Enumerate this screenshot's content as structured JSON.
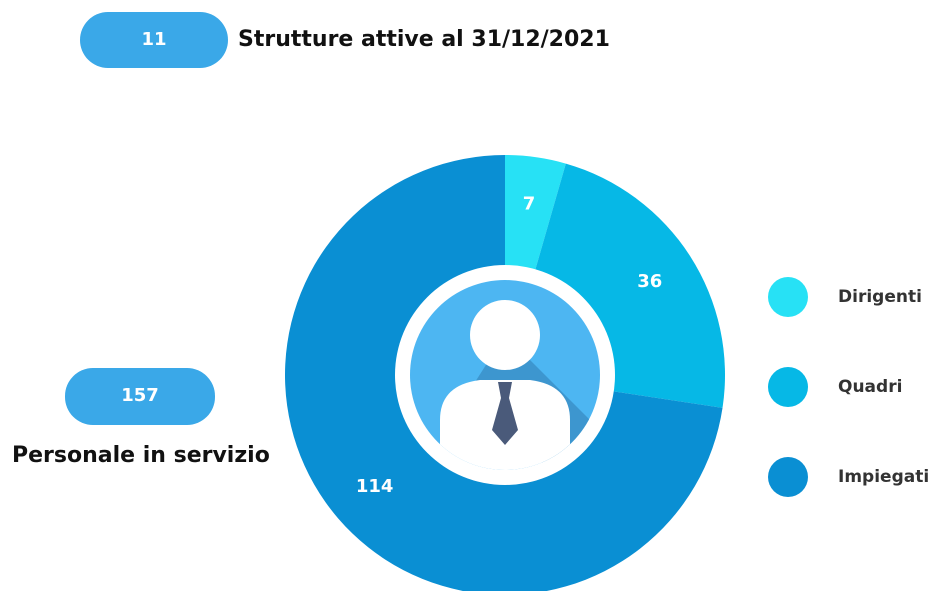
{
  "summary": {
    "structures": {
      "value": 11,
      "label": "Strutture attive al 31/12/2021"
    },
    "staff": {
      "value": 157,
      "label": "Personale in servizio"
    }
  },
  "chart_data": {
    "type": "pie",
    "categories": [
      "Dirigenti",
      "Quadri",
      "Impiegati"
    ],
    "values": [
      7,
      36,
      114
    ],
    "colors": [
      "#27e1f5",
      "#06b8e6",
      "#0a8fd3"
    ]
  }
}
